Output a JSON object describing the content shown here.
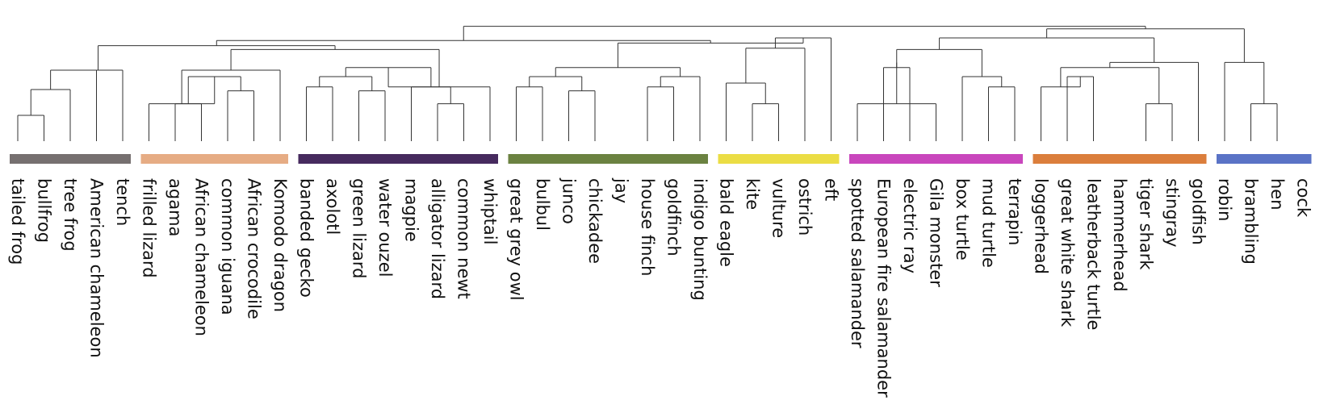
{
  "chart_data": {
    "type": "dendrogram",
    "leaves": [
      "tailed frog",
      "bullfrog",
      "tree frog",
      "American chameleon",
      "tench",
      "frilled lizard",
      "agama",
      "African chameleon",
      "common iguana",
      "African crocodile",
      "Komodo dragon",
      "banded gecko",
      "axolotl",
      "green lizard",
      "water ouzel",
      "magpie",
      "alligator lizard",
      "common newt",
      "whiptail",
      "great grey owl",
      "bulbul",
      "junco",
      "chickadee",
      "jay",
      "house finch",
      "goldfinch",
      "indigo bunting",
      "bald eagle",
      "kite",
      "vulture",
      "ostrich",
      "eft",
      "spotted salamander",
      "European fire salamander",
      "electric ray",
      "Gila monster",
      "box turtle",
      "mud turtle",
      "terrapin",
      "loggerhead",
      "great white shark",
      "leatherback turtle",
      "hammerhead",
      "tiger shark",
      "stingray",
      "goldfish",
      "robin",
      "brambling",
      "hen",
      "cock"
    ],
    "clusters": [
      {
        "color": "#767070",
        "members": [
          0,
          4
        ]
      },
      {
        "color": "#e6ac84",
        "members": [
          5,
          10
        ]
      },
      {
        "color": "#462a5e",
        "members": [
          11,
          18
        ]
      },
      {
        "color": "#6b8241",
        "members": [
          19,
          26
        ]
      },
      {
        "color": "#ebdd44",
        "members": [
          27,
          31
        ]
      },
      {
        "color": "#c946bd",
        "members": [
          32,
          38
        ]
      },
      {
        "color": "#db7e3c",
        "members": [
          39,
          45
        ]
      },
      {
        "color": "#5a73c6",
        "members": [
          46,
          49
        ]
      }
    ],
    "merges": [
      [
        0,
        1,
        0.2
      ],
      [
        50,
        2,
        0.4
      ],
      [
        51,
        3,
        0.55
      ],
      [
        52,
        4,
        0.55
      ],
      [
        6,
        7,
        0.29
      ],
      [
        8,
        9,
        0.39
      ],
      [
        54,
        55,
        0.5
      ],
      [
        5,
        56,
        0.29
      ],
      [
        57,
        10,
        0.55
      ],
      [
        11,
        12,
        0.42
      ],
      [
        13,
        14,
        0.39
      ],
      [
        59,
        60,
        0.5
      ],
      [
        16,
        17,
        0.29
      ],
      [
        15,
        62,
        0.42
      ],
      [
        61,
        63,
        0.57
      ],
      [
        64,
        18,
        0.42
      ],
      [
        58,
        65,
        0.71
      ],
      [
        19,
        20,
        0.42
      ],
      [
        21,
        22,
        0.39
      ],
      [
        67,
        68,
        0.5
      ],
      [
        24,
        25,
        0.42
      ],
      [
        26,
        70,
        0.5
      ],
      [
        69,
        71,
        0.57
      ],
      [
        28,
        29,
        0.29
      ],
      [
        27,
        73,
        0.45
      ],
      [
        74,
        30,
        0.72
      ],
      [
        75,
        31,
        0.8
      ],
      [
        72,
        76,
        0.76
      ],
      [
        33,
        34,
        0.57
      ],
      [
        32,
        35,
        0.29
      ],
      [
        79,
        78,
        0.61
      ],
      [
        37,
        38,
        0.42
      ],
      [
        36,
        81,
        0.5
      ],
      [
        80,
        82,
        0.71
      ],
      [
        40,
        41,
        0.5
      ],
      [
        39,
        84,
        0.42
      ],
      [
        43,
        44,
        0.29
      ],
      [
        85,
        86,
        0.57
      ],
      [
        87,
        45,
        0.61
      ],
      [
        83,
        88,
        0.8
      ],
      [
        47,
        48,
        0.29
      ],
      [
        46,
        90,
        0.61
      ],
      [
        89,
        91,
        0.87
      ],
      [
        53,
        66,
        0.74
      ],
      [
        93,
        77,
        0.78
      ],
      [
        94,
        92,
        0.89
      ]
    ]
  }
}
